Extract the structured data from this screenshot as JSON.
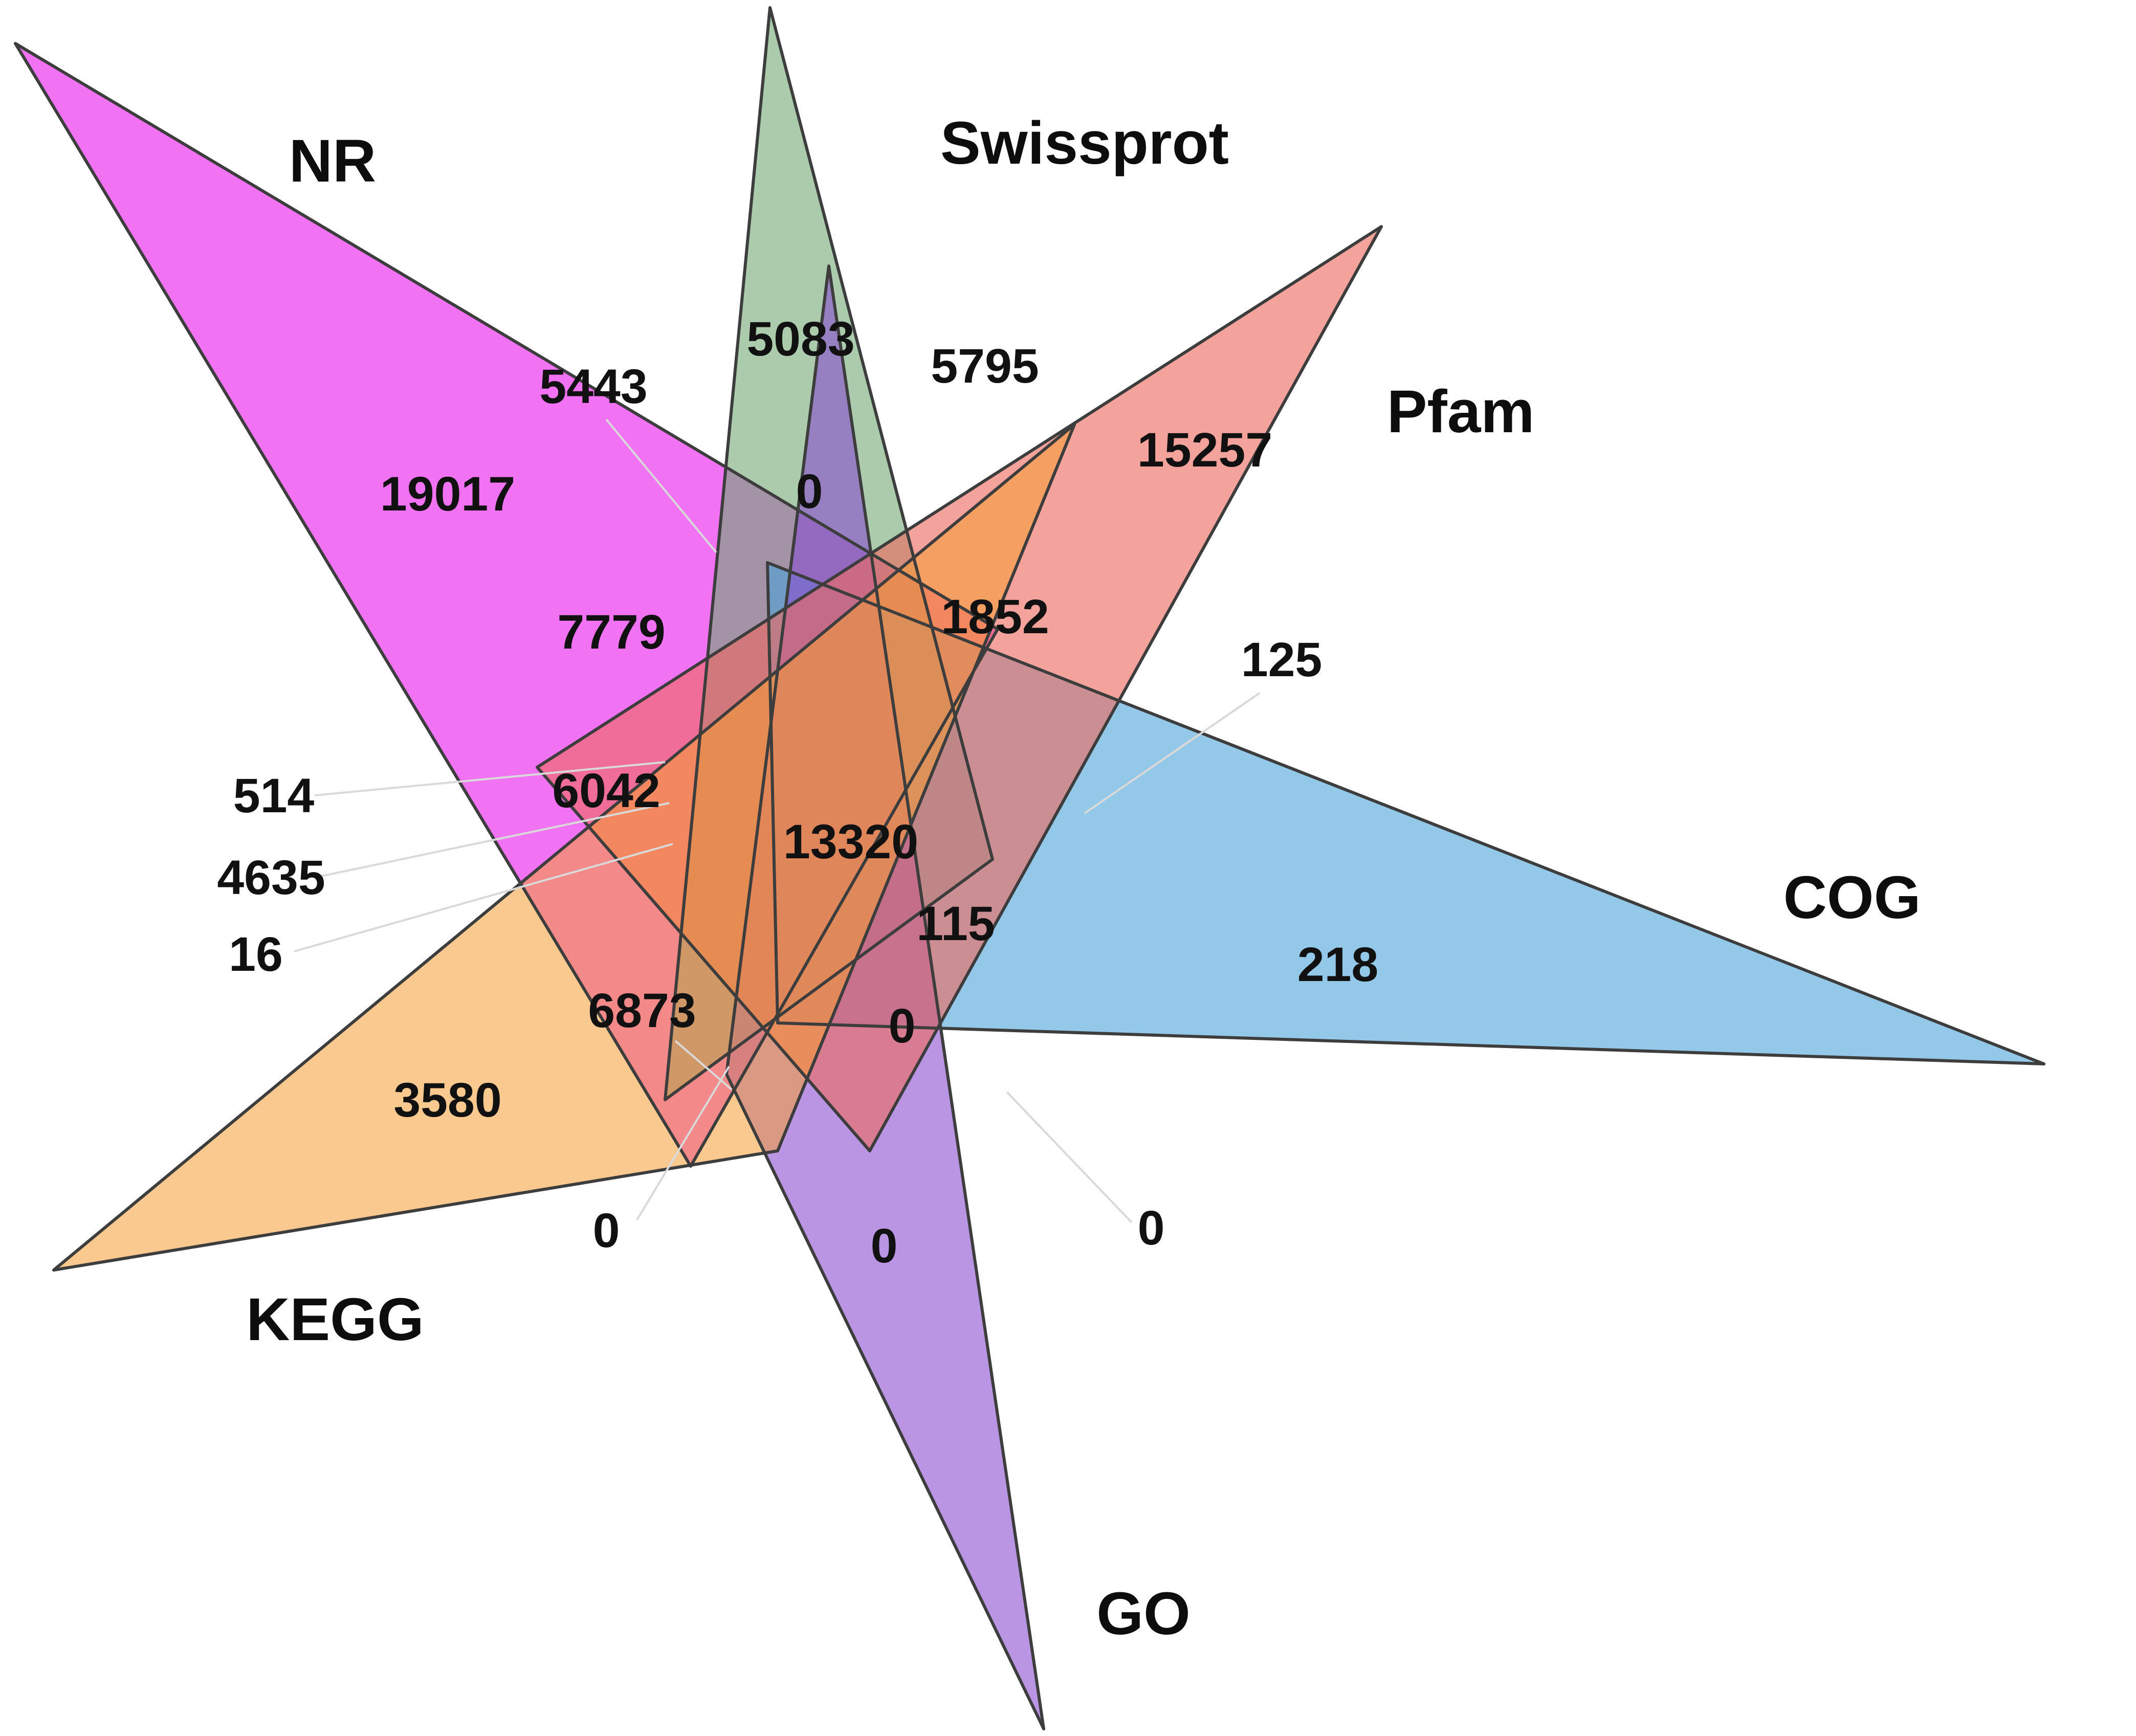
{
  "figure": {
    "type": "6-set star Venn diagram",
    "background": "#ffffff",
    "edge_color": "#3d3d3d",
    "text_color": "#111111"
  },
  "chart_data": {
    "type": "venn",
    "variant": "6-set-triangle-star",
    "title": "",
    "legend_position": "around-shapes",
    "sets": [
      {
        "name": "NR",
        "color": "#ee4ff0"
      },
      {
        "name": "Swissprot",
        "color": "#71a874"
      },
      {
        "name": "Pfam",
        "color": "#ed6a60"
      },
      {
        "name": "COG",
        "color": "#4da3d8"
      },
      {
        "name": "GO",
        "color": "#8a4fd0"
      },
      {
        "name": "KEGG",
        "color": "#f69c33"
      }
    ],
    "region_counts": [
      {
        "id": "nr-only",
        "value": "19017"
      },
      {
        "id": "swissprot-only",
        "value": "5083"
      },
      {
        "id": "pfam-only",
        "value": "15257"
      },
      {
        "id": "cog-only",
        "value": "218"
      },
      {
        "id": "go-only",
        "value": "0"
      },
      {
        "id": "kegg-only",
        "value": "3580"
      },
      {
        "id": "nr-swissprot",
        "value": "5443"
      },
      {
        "id": "swissprot-pfam",
        "value": "5795"
      },
      {
        "id": "kegg-pfam-band",
        "value": "1852"
      },
      {
        "id": "count-125",
        "value": "125"
      },
      {
        "id": "count-7779",
        "value": "7779"
      },
      {
        "id": "count-6042",
        "value": "6042"
      },
      {
        "id": "count-514",
        "value": "514"
      },
      {
        "id": "count-4635",
        "value": "4635"
      },
      {
        "id": "count-16",
        "value": "16"
      },
      {
        "id": "all-six",
        "value": "13320"
      },
      {
        "id": "count-115",
        "value": "115"
      },
      {
        "id": "zero-top-center",
        "value": "0"
      },
      {
        "id": "zero-mid-center",
        "value": "0"
      },
      {
        "id": "count-6873",
        "value": "6873"
      },
      {
        "id": "zero-bottom-left",
        "value": "0"
      },
      {
        "id": "zero-bottom-right",
        "value": "0"
      }
    ]
  }
}
